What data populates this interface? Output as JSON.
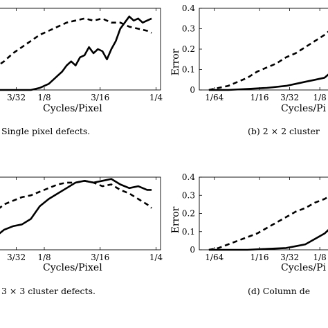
{
  "chart_data": [
    {
      "id": "a",
      "type": "line",
      "caption": "Single pixel defects.",
      "xlabel": "Cycles/Pixel",
      "ylabel": "",
      "x_ticks": [
        {
          "value": 0.09375,
          "label": "3/32"
        },
        {
          "value": 0.125,
          "label": "1/8"
        },
        {
          "value": 0.1875,
          "label": "3/16"
        },
        {
          "value": 0.25,
          "label": "1/4"
        }
      ],
      "y_ticks": [],
      "xlim": [
        0.06,
        0.255
      ],
      "ylim": [
        0,
        0.4
      ],
      "series": [
        {
          "style": "dashed",
          "x": [
            0.06,
            0.07,
            0.08,
            0.09,
            0.1,
            0.11,
            0.12,
            0.13,
            0.14,
            0.15,
            0.16,
            0.17,
            0.18,
            0.19,
            0.2,
            0.21,
            0.22,
            0.23,
            0.24,
            0.245
          ],
          "y": [
            0.09,
            0.11,
            0.14,
            0.18,
            0.21,
            0.24,
            0.27,
            0.29,
            0.31,
            0.33,
            0.34,
            0.35,
            0.34,
            0.35,
            0.33,
            0.33,
            0.31,
            0.3,
            0.29,
            0.28
          ]
        },
        {
          "style": "solid",
          "x": [
            0.06,
            0.08,
            0.1,
            0.11,
            0.12,
            0.125,
            0.13,
            0.135,
            0.14,
            0.145,
            0.15,
            0.155,
            0.16,
            0.165,
            0.17,
            0.175,
            0.18,
            0.185,
            0.19,
            0.195,
            0.2,
            0.205,
            0.21,
            0.215,
            0.22,
            0.225,
            0.23,
            0.235,
            0.24,
            0.245
          ],
          "y": [
            0.0,
            0.0,
            0.0,
            0.0,
            0.01,
            0.02,
            0.03,
            0.05,
            0.07,
            0.09,
            0.12,
            0.14,
            0.12,
            0.16,
            0.17,
            0.21,
            0.18,
            0.2,
            0.19,
            0.15,
            0.2,
            0.24,
            0.3,
            0.33,
            0.36,
            0.34,
            0.35,
            0.33,
            0.34,
            0.35
          ]
        }
      ]
    },
    {
      "id": "b",
      "type": "line",
      "caption": "(b) 2 × 2 cluster",
      "xlabel": "Cycles/Pi",
      "ylabel": "Error",
      "x_ticks": [
        {
          "value": 0.015625,
          "label": "1/64"
        },
        {
          "value": 0.0625,
          "label": "1/16"
        },
        {
          "value": 0.09375,
          "label": "3/32"
        },
        {
          "value": 0.125,
          "label": "1/8"
        }
      ],
      "y_ticks": [
        {
          "value": 0,
          "label": "0"
        },
        {
          "value": 0.1,
          "label": "0.1"
        },
        {
          "value": 0.2,
          "label": "0.2"
        },
        {
          "value": 0.3,
          "label": "0.3"
        },
        {
          "value": 0.4,
          "label": "0.4"
        }
      ],
      "xlim": [
        0.0,
        0.145
      ],
      "ylim": [
        0,
        0.4
      ],
      "series": [
        {
          "style": "dashed",
          "x": [
            0.01,
            0.02,
            0.03,
            0.04,
            0.05,
            0.06,
            0.07,
            0.08,
            0.09,
            0.1,
            0.11,
            0.12,
            0.13,
            0.14,
            0.145
          ],
          "y": [
            0.0,
            0.01,
            0.02,
            0.04,
            0.06,
            0.09,
            0.11,
            0.13,
            0.16,
            0.18,
            0.21,
            0.24,
            0.27,
            0.31,
            0.33
          ]
        },
        {
          "style": "solid",
          "x": [
            0.01,
            0.03,
            0.05,
            0.07,
            0.09,
            0.1,
            0.11,
            0.12,
            0.13,
            0.14,
            0.145
          ],
          "y": [
            0.0,
            0.0,
            0.005,
            0.01,
            0.02,
            0.03,
            0.04,
            0.05,
            0.06,
            0.1,
            0.12
          ]
        }
      ]
    },
    {
      "id": "c",
      "type": "line",
      "caption": "3 × 3 cluster defects.",
      "xlabel": "Cycles/Pixel",
      "ylabel": "",
      "x_ticks": [
        {
          "value": 0.09375,
          "label": "3/32"
        },
        {
          "value": 0.125,
          "label": "1/8"
        },
        {
          "value": 0.1875,
          "label": "3/16"
        },
        {
          "value": 0.25,
          "label": "1/4"
        }
      ],
      "y_ticks": [],
      "xlim": [
        0.06,
        0.255
      ],
      "ylim": [
        0,
        0.4
      ],
      "series": [
        {
          "style": "dashed",
          "x": [
            0.06,
            0.07,
            0.08,
            0.09,
            0.1,
            0.11,
            0.12,
            0.13,
            0.14,
            0.15,
            0.16,
            0.17,
            0.18,
            0.19,
            0.2,
            0.21,
            0.22,
            0.23,
            0.24,
            0.245
          ],
          "y": [
            0.16,
            0.21,
            0.25,
            0.27,
            0.29,
            0.3,
            0.32,
            0.34,
            0.36,
            0.37,
            0.37,
            0.38,
            0.37,
            0.35,
            0.36,
            0.33,
            0.31,
            0.28,
            0.25,
            0.23
          ]
        },
        {
          "style": "solid",
          "x": [
            0.06,
            0.07,
            0.08,
            0.09,
            0.1,
            0.11,
            0.12,
            0.13,
            0.14,
            0.15,
            0.16,
            0.17,
            0.18,
            0.19,
            0.2,
            0.21,
            0.22,
            0.23,
            0.24,
            0.245
          ],
          "y": [
            0.04,
            0.07,
            0.11,
            0.13,
            0.14,
            0.17,
            0.24,
            0.28,
            0.31,
            0.34,
            0.37,
            0.38,
            0.37,
            0.38,
            0.39,
            0.36,
            0.34,
            0.35,
            0.33,
            0.33
          ]
        }
      ]
    },
    {
      "id": "d",
      "type": "line",
      "caption": "(d) Column de",
      "xlabel": "Cycles/Pi",
      "ylabel": "Error",
      "x_ticks": [
        {
          "value": 0.015625,
          "label": "1/64"
        },
        {
          "value": 0.0625,
          "label": "1/16"
        },
        {
          "value": 0.09375,
          "label": "3/32"
        },
        {
          "value": 0.125,
          "label": "1/8"
        }
      ],
      "y_ticks": [
        {
          "value": 0,
          "label": "0"
        },
        {
          "value": 0.1,
          "label": "0.1"
        },
        {
          "value": 0.2,
          "label": "0.2"
        },
        {
          "value": 0.3,
          "label": "0.3"
        },
        {
          "value": 0.4,
          "label": "0.4"
        }
      ],
      "xlim": [
        0.0,
        0.145
      ],
      "ylim": [
        0,
        0.4
      ],
      "series": [
        {
          "style": "dashed",
          "x": [
            0.01,
            0.02,
            0.03,
            0.04,
            0.05,
            0.06,
            0.07,
            0.08,
            0.09,
            0.1,
            0.11,
            0.12,
            0.13,
            0.14,
            0.145
          ],
          "y": [
            0.0,
            0.01,
            0.03,
            0.05,
            0.07,
            0.09,
            0.12,
            0.15,
            0.18,
            0.21,
            0.23,
            0.26,
            0.28,
            0.31,
            0.33
          ]
        },
        {
          "style": "solid",
          "x": [
            0.01,
            0.03,
            0.05,
            0.07,
            0.09,
            0.1,
            0.11,
            0.12,
            0.13,
            0.14,
            0.145
          ],
          "y": [
            0.0,
            0.0,
            0.0,
            0.005,
            0.01,
            0.02,
            0.03,
            0.06,
            0.09,
            0.14,
            0.17
          ]
        }
      ]
    }
  ]
}
